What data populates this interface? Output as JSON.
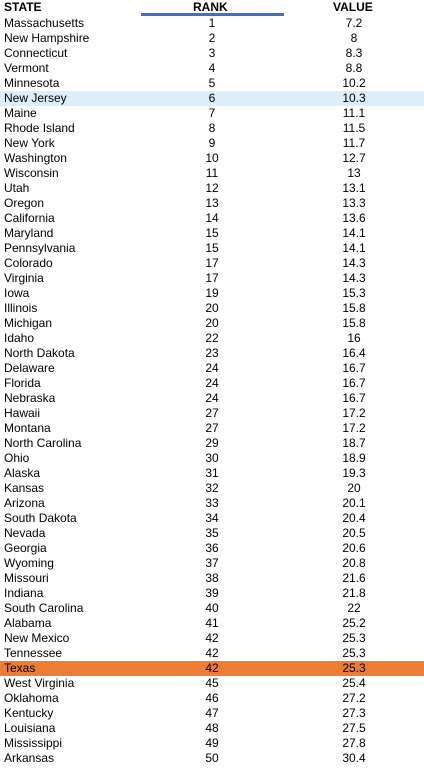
{
  "header": {
    "state": "STATE",
    "rank": "RANK",
    "value": "VALUE"
  },
  "colors": {
    "sort_underline": "#3c6fd6",
    "highlight_blue": "#dbeef9",
    "highlight_orange": "#ed7d31"
  },
  "rows": [
    {
      "state": "Massachusetts",
      "rank": "1",
      "value": "7.2",
      "highlight": ""
    },
    {
      "state": "New Hampshire",
      "rank": "2",
      "value": "8",
      "highlight": ""
    },
    {
      "state": "Connecticut",
      "rank": "3",
      "value": "8.3",
      "highlight": ""
    },
    {
      "state": "Vermont",
      "rank": "4",
      "value": "8.8",
      "highlight": ""
    },
    {
      "state": "Minnesota",
      "rank": "5",
      "value": "10.2",
      "highlight": ""
    },
    {
      "state": "New Jersey",
      "rank": "6",
      "value": "10.3",
      "highlight": "blue"
    },
    {
      "state": "Maine",
      "rank": "7",
      "value": "11.1",
      "highlight": ""
    },
    {
      "state": "Rhode Island",
      "rank": "8",
      "value": "11.5",
      "highlight": ""
    },
    {
      "state": "New York",
      "rank": "9",
      "value": "11.7",
      "highlight": ""
    },
    {
      "state": "Washington",
      "rank": "10",
      "value": "12.7",
      "highlight": ""
    },
    {
      "state": "Wisconsin",
      "rank": "11",
      "value": "13",
      "highlight": ""
    },
    {
      "state": "Utah",
      "rank": "12",
      "value": "13.1",
      "highlight": ""
    },
    {
      "state": "Oregon",
      "rank": "13",
      "value": "13.3",
      "highlight": ""
    },
    {
      "state": "California",
      "rank": "14",
      "value": "13.6",
      "highlight": ""
    },
    {
      "state": "Maryland",
      "rank": "15",
      "value": "14.1",
      "highlight": ""
    },
    {
      "state": "Pennsylvania",
      "rank": "15",
      "value": "14.1",
      "highlight": ""
    },
    {
      "state": "Colorado",
      "rank": "17",
      "value": "14.3",
      "highlight": ""
    },
    {
      "state": "Virginia",
      "rank": "17",
      "value": "14.3",
      "highlight": ""
    },
    {
      "state": "Iowa",
      "rank": "19",
      "value": "15.3",
      "highlight": ""
    },
    {
      "state": "Illinois",
      "rank": "20",
      "value": "15.8",
      "highlight": ""
    },
    {
      "state": "Michigan",
      "rank": "20",
      "value": "15.8",
      "highlight": ""
    },
    {
      "state": "Idaho",
      "rank": "22",
      "value": "16",
      "highlight": ""
    },
    {
      "state": "North Dakota",
      "rank": "23",
      "value": "16.4",
      "highlight": ""
    },
    {
      "state": "Delaware",
      "rank": "24",
      "value": "16.7",
      "highlight": ""
    },
    {
      "state": "Florida",
      "rank": "24",
      "value": "16.7",
      "highlight": ""
    },
    {
      "state": "Nebraska",
      "rank": "24",
      "value": "16.7",
      "highlight": ""
    },
    {
      "state": "Hawaii",
      "rank": "27",
      "value": "17.2",
      "highlight": ""
    },
    {
      "state": "Montana",
      "rank": "27",
      "value": "17.2",
      "highlight": ""
    },
    {
      "state": "North Carolina",
      "rank": "29",
      "value": "18.7",
      "highlight": ""
    },
    {
      "state": "Ohio",
      "rank": "30",
      "value": "18.9",
      "highlight": ""
    },
    {
      "state": "Alaska",
      "rank": "31",
      "value": "19.3",
      "highlight": ""
    },
    {
      "state": "Kansas",
      "rank": "32",
      "value": "20",
      "highlight": ""
    },
    {
      "state": "Arizona",
      "rank": "33",
      "value": "20.1",
      "highlight": ""
    },
    {
      "state": "South Dakota",
      "rank": "34",
      "value": "20.4",
      "highlight": ""
    },
    {
      "state": "Nevada",
      "rank": "35",
      "value": "20.5",
      "highlight": ""
    },
    {
      "state": "Georgia",
      "rank": "36",
      "value": "20.6",
      "highlight": ""
    },
    {
      "state": "Wyoming",
      "rank": "37",
      "value": "20.8",
      "highlight": ""
    },
    {
      "state": "Missouri",
      "rank": "38",
      "value": "21.6",
      "highlight": ""
    },
    {
      "state": "Indiana",
      "rank": "39",
      "value": "21.8",
      "highlight": ""
    },
    {
      "state": "South Carolina",
      "rank": "40",
      "value": "22",
      "highlight": ""
    },
    {
      "state": "Alabama",
      "rank": "41",
      "value": "25.2",
      "highlight": ""
    },
    {
      "state": "New Mexico",
      "rank": "42",
      "value": "25.3",
      "highlight": ""
    },
    {
      "state": "Tennessee",
      "rank": "42",
      "value": "25.3",
      "highlight": ""
    },
    {
      "state": "Texas",
      "rank": "42",
      "value": "25.3",
      "highlight": "orange"
    },
    {
      "state": "West Virginia",
      "rank": "45",
      "value": "25.4",
      "highlight": ""
    },
    {
      "state": "Oklahoma",
      "rank": "46",
      "value": "27.2",
      "highlight": ""
    },
    {
      "state": "Kentucky",
      "rank": "47",
      "value": "27.3",
      "highlight": ""
    },
    {
      "state": "Louisiana",
      "rank": "48",
      "value": "27.5",
      "highlight": ""
    },
    {
      "state": "Mississippi",
      "rank": "49",
      "value": "27.8",
      "highlight": ""
    },
    {
      "state": "Arkansas",
      "rank": "50",
      "value": "30.4",
      "highlight": ""
    }
  ]
}
